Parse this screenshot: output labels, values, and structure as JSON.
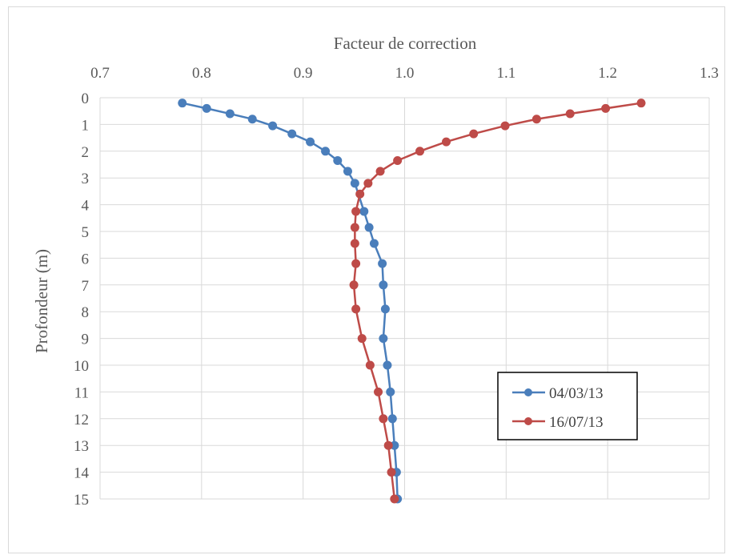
{
  "chart_data": {
    "type": "line",
    "xlabel": "Facteur de correction",
    "ylabel": "Profondeur  (m)",
    "xlim": [
      0.7,
      1.3
    ],
    "ylim": [
      0,
      15
    ],
    "x_axis_position": "top",
    "y_axis_inverted": true,
    "x_ticks": [
      "0.7",
      "0.8",
      "0.9",
      "1.0",
      "1.1",
      "1.2",
      "1.3"
    ],
    "y_ticks": [
      "0",
      "1",
      "2",
      "3",
      "4",
      "5",
      "6",
      "7",
      "8",
      "9",
      "10",
      "11",
      "12",
      "13",
      "14",
      "15"
    ],
    "grid": true,
    "legend_position": "bottom-right",
    "series": [
      {
        "name": "04/03/13",
        "color": "#4a7ebb",
        "points": [
          [
            0.781,
            0.2
          ],
          [
            0.805,
            0.4
          ],
          [
            0.828,
            0.6
          ],
          [
            0.85,
            0.8
          ],
          [
            0.87,
            1.05
          ],
          [
            0.889,
            1.35
          ],
          [
            0.907,
            1.65
          ],
          [
            0.922,
            2.0
          ],
          [
            0.934,
            2.35
          ],
          [
            0.944,
            2.75
          ],
          [
            0.951,
            3.2
          ],
          [
            0.96,
            4.25
          ],
          [
            0.965,
            4.85
          ],
          [
            0.97,
            5.45
          ],
          [
            0.978,
            6.2
          ],
          [
            0.979,
            7.0
          ],
          [
            0.981,
            7.9
          ],
          [
            0.979,
            9.0
          ],
          [
            0.983,
            10.0
          ],
          [
            0.986,
            11.0
          ],
          [
            0.988,
            12.0
          ],
          [
            0.99,
            13.0
          ],
          [
            0.992,
            14.0
          ],
          [
            0.993,
            15.0
          ]
        ]
      },
      {
        "name": "16/07/13",
        "color": "#be4b48",
        "points": [
          [
            1.233,
            0.2
          ],
          [
            1.198,
            0.4
          ],
          [
            1.163,
            0.6
          ],
          [
            1.13,
            0.8
          ],
          [
            1.099,
            1.05
          ],
          [
            1.068,
            1.35
          ],
          [
            1.041,
            1.65
          ],
          [
            1.015,
            2.0
          ],
          [
            0.993,
            2.35
          ],
          [
            0.976,
            2.75
          ],
          [
            0.964,
            3.2
          ],
          [
            0.956,
            3.6
          ],
          [
            0.952,
            4.25
          ],
          [
            0.951,
            4.85
          ],
          [
            0.951,
            5.45
          ],
          [
            0.952,
            6.2
          ],
          [
            0.95,
            7.0
          ],
          [
            0.952,
            7.9
          ],
          [
            0.958,
            9.0
          ],
          [
            0.966,
            10.0
          ],
          [
            0.974,
            11.0
          ],
          [
            0.979,
            12.0
          ],
          [
            0.984,
            13.0
          ],
          [
            0.987,
            14.0
          ],
          [
            0.99,
            15.0
          ]
        ]
      }
    ]
  }
}
